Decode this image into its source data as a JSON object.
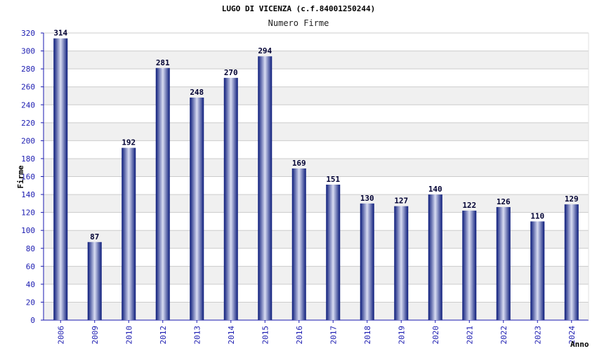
{
  "chart_data": {
    "type": "bar",
    "title": "LUGO DI VICENZA (c.f.84001250244)",
    "subtitle": "Numero Firme",
    "xlabel": "Anno",
    "ylabel": "Firme",
    "categories": [
      "2006",
      "2009",
      "2010",
      "2012",
      "2013",
      "2014",
      "2015",
      "2016",
      "2017",
      "2018",
      "2019",
      "2020",
      "2021",
      "2022",
      "2023",
      "2024"
    ],
    "series": [
      {
        "values": [
          314,
          87,
          192,
          281,
          248,
          270,
          294,
          169,
          151,
          130,
          127,
          140,
          122,
          126,
          110,
          129
        ]
      }
    ],
    "ylim": [
      0,
      320
    ],
    "yticks": [
      0,
      20,
      40,
      60,
      80,
      100,
      120,
      140,
      160,
      180,
      200,
      220,
      240,
      260,
      280,
      300,
      320
    ],
    "grid": true,
    "legend": "none",
    "colors": {
      "bar_edge": "#0a1a7a",
      "bar_center": "#d8dcf2",
      "band": "#f0f0f0",
      "gridline": "#cccccc",
      "axis": "#1a1ab0"
    }
  }
}
